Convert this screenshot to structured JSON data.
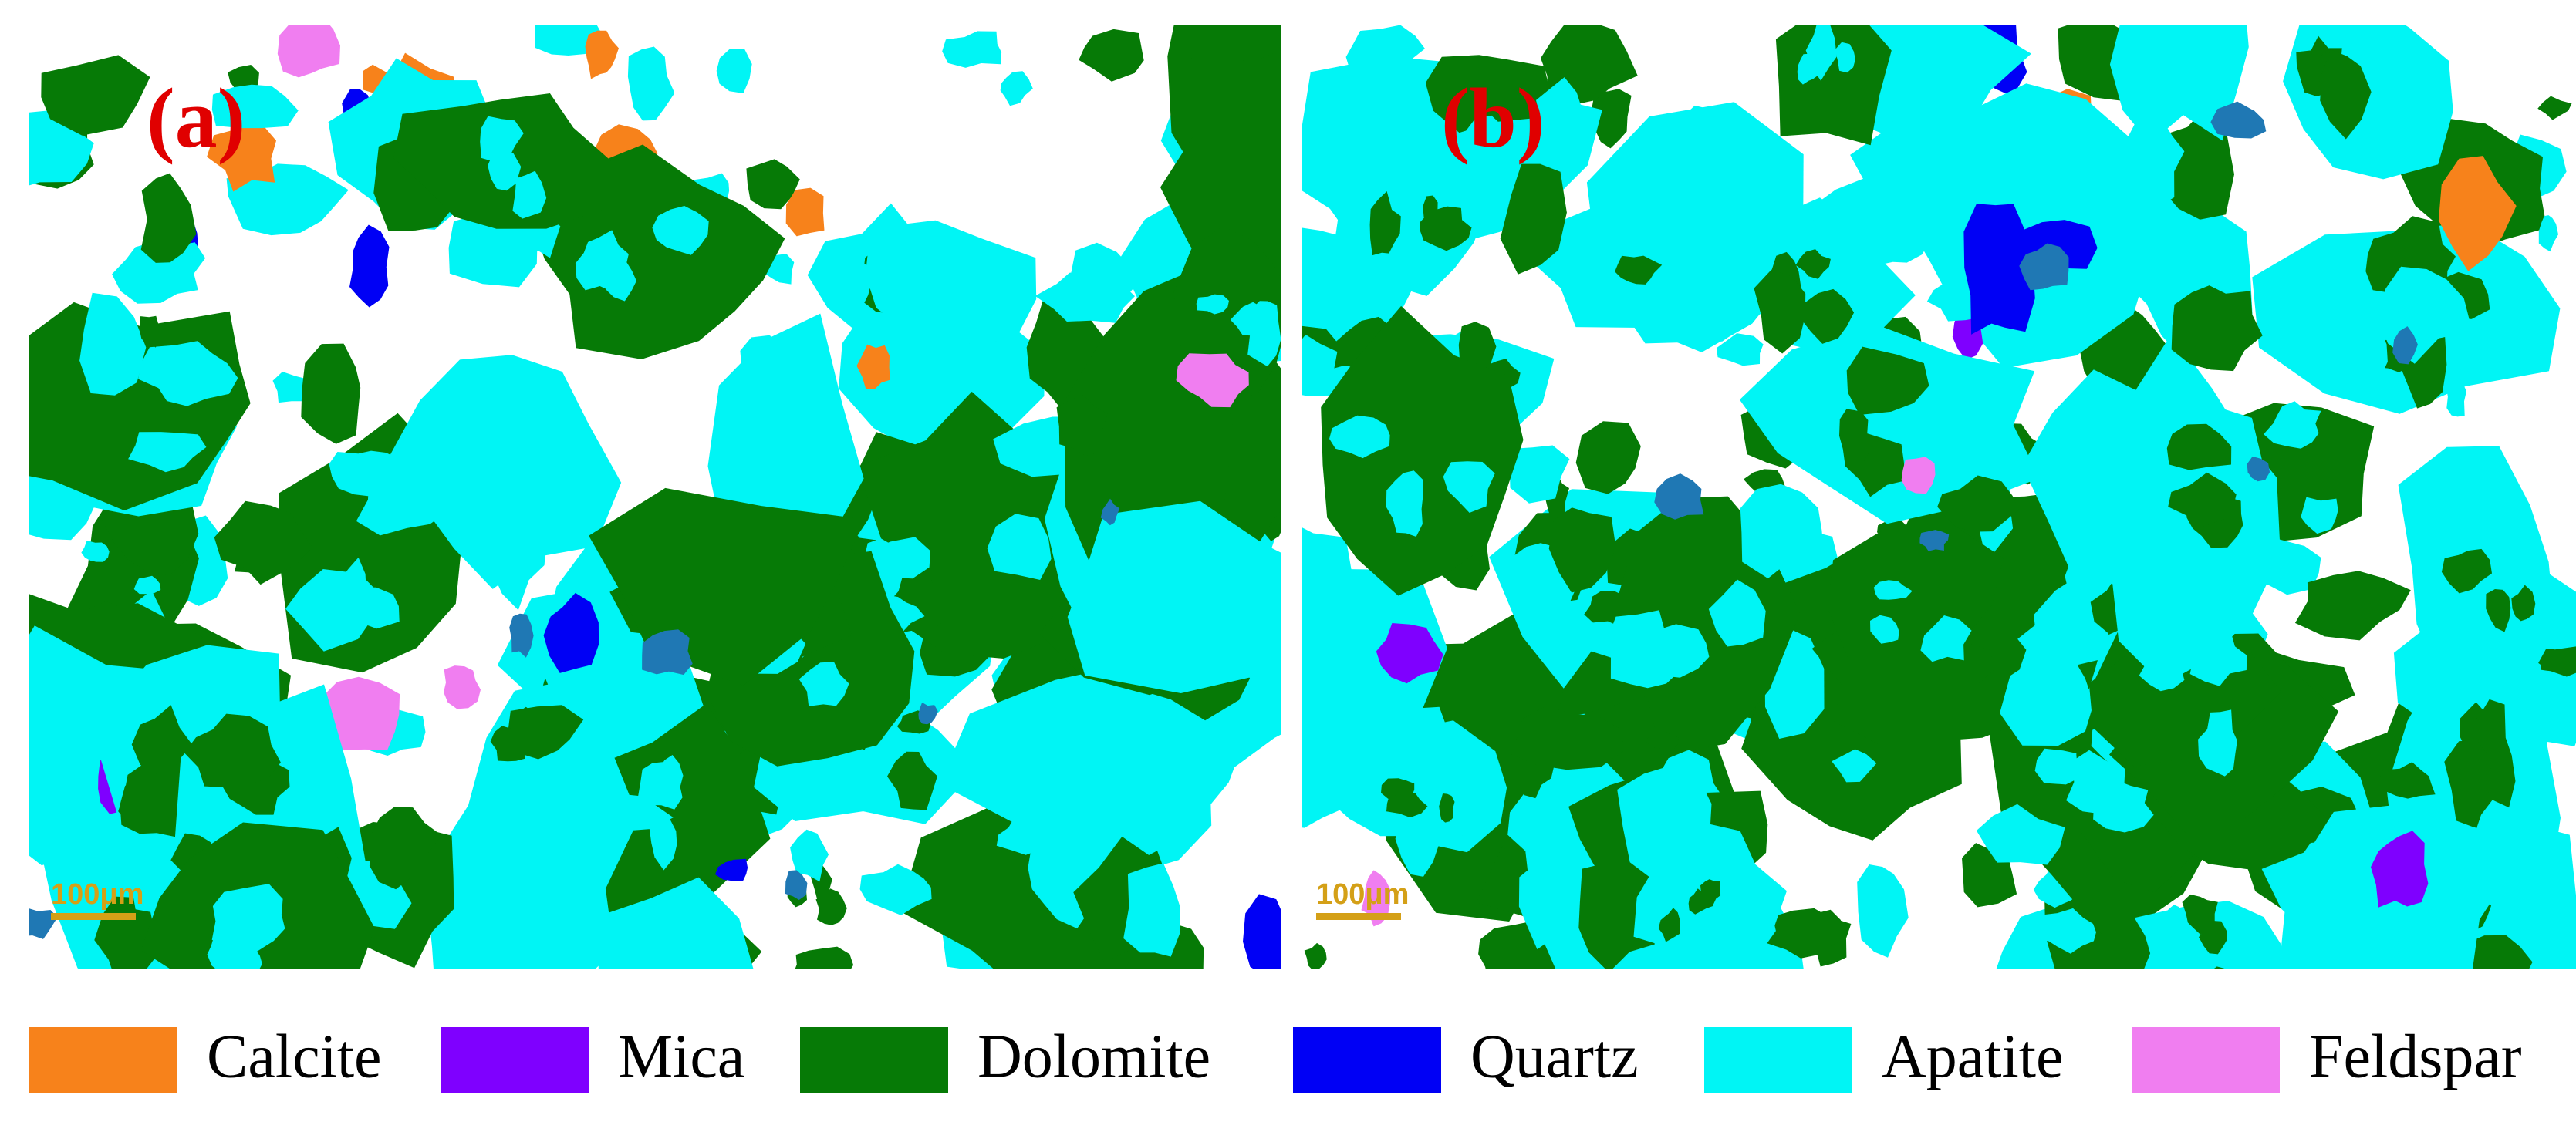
{
  "panels": [
    {
      "label": "(a)",
      "scale_bar": "100μm"
    },
    {
      "label": "(b)",
      "scale_bar": "100μm"
    }
  ],
  "legend": [
    {
      "name": "Calcite",
      "color": "#f7821b"
    },
    {
      "name": "Mica",
      "color": "#7f00ff"
    },
    {
      "name": "Dolomite",
      "color": "#067a06"
    },
    {
      "name": "Quartz",
      "color": "#0000f5"
    },
    {
      "name": "Apatite",
      "color": "#00f5f5"
    },
    {
      "name": "Feldspar",
      "color": "#f07ef0"
    }
  ]
}
